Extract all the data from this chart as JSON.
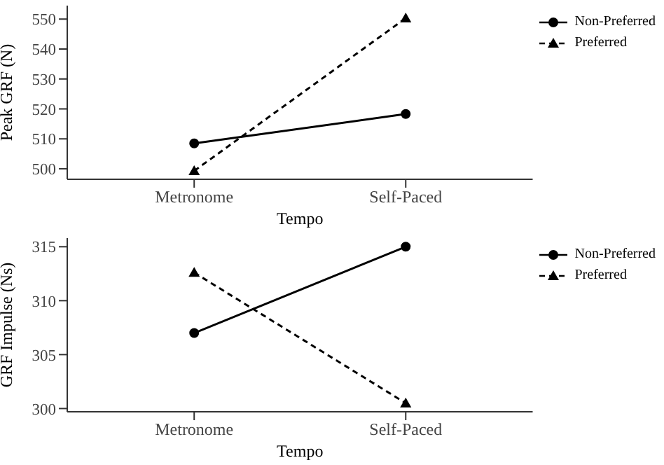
{
  "chart_data": [
    {
      "type": "line",
      "categories": [
        "Metronome",
        "Self-Paced"
      ],
      "xlabel": "Tempo",
      "ylabel": "Peak GRF (N)",
      "ylim": [
        496.5,
        554.5
      ],
      "yticks": [
        500,
        510,
        520,
        530,
        540,
        550
      ],
      "grid": false,
      "legend": "top right",
      "series": [
        {
          "name": "Non-Preferred",
          "color": "#000000",
          "values": [
            508.5,
            518.3
          ],
          "marker": "circle",
          "line_style": "solid"
        },
        {
          "name": "Preferred",
          "color": "#000000",
          "values": [
            499.3,
            550.3
          ],
          "marker": "triangle",
          "line_style": "dashed"
        }
      ]
    },
    {
      "type": "line",
      "categories": [
        "Metronome",
        "Self-Paced"
      ],
      "xlabel": "Tempo",
      "ylabel": "GRF Impulse (Ns)",
      "ylim": [
        299.7,
        315.8
      ],
      "yticks": [
        300,
        305,
        310,
        315
      ],
      "grid": false,
      "legend": "top right",
      "series": [
        {
          "name": "Non-Preferred",
          "color": "#000000",
          "values": [
            307.0,
            315.0
          ],
          "marker": "circle",
          "line_style": "solid"
        },
        {
          "name": "Preferred",
          "color": "#000000",
          "values": [
            312.6,
            300.5
          ],
          "marker": "triangle",
          "line_style": "dashed"
        }
      ]
    }
  ]
}
